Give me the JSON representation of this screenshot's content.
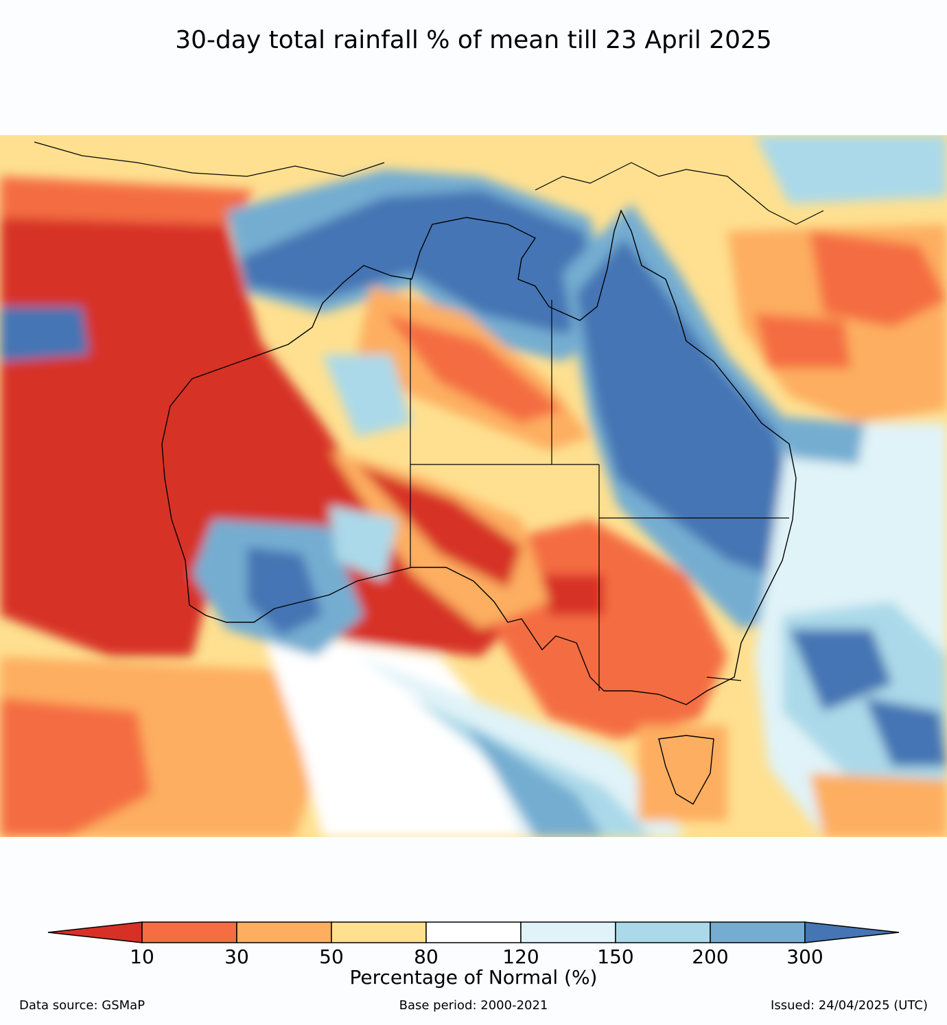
{
  "title": "30-day total rainfall % of mean till 23 April 2025",
  "legend": {
    "ticks": [
      "10",
      "30",
      "50",
      "80",
      "120",
      "150",
      "200",
      "300"
    ],
    "label": "Percentage of Normal (%)",
    "colors": [
      "#d73027",
      "#f46d43",
      "#fdae61",
      "#fee090",
      "#ffffff",
      "#e0f3f8",
      "#abd9e9",
      "#74add1",
      "#4575b4"
    ]
  },
  "footer": {
    "source": "Data source: GSMaP",
    "base_period": "Base period: 2000-2021",
    "issued": "Issued: 24/04/2025 (UTC)"
  },
  "map": {
    "region": "Australia",
    "ocean_color": "#fee090",
    "coast_color": "#000000"
  }
}
